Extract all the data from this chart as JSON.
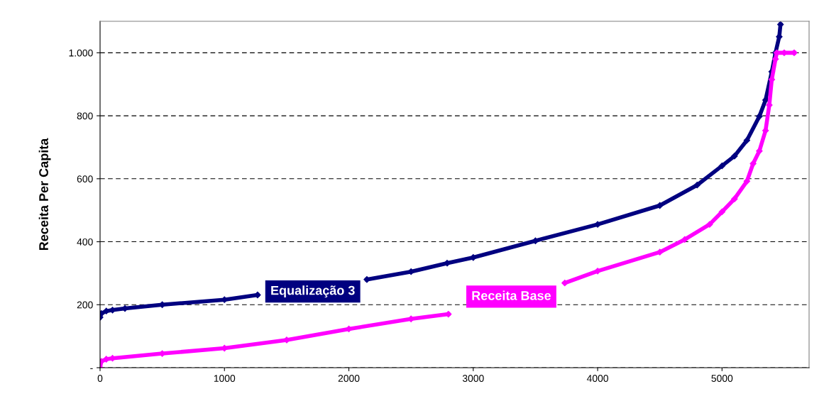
{
  "chart_data": {
    "type": "line",
    "ylabel": "Receita Per Capita",
    "xlim": [
      0,
      5700
    ],
    "xticks": [
      0,
      1000,
      2000,
      3000,
      4000,
      5000
    ],
    "ylim": [
      0,
      1100
    ],
    "yticks": [
      {
        "value": 0,
        "label": "-"
      },
      200,
      400,
      600,
      800,
      {
        "value": 1000,
        "label": "1.000"
      }
    ],
    "grid": "y",
    "legend": false,
    "marker": "diamond",
    "series": [
      {
        "name": "Equalização 3",
        "color": "#000080",
        "x": [
          0,
          10,
          50,
          100,
          200,
          500,
          1000,
          1266,
          1500,
          2145,
          2500,
          2790,
          3000,
          3500,
          4000,
          4500,
          4800,
          5000,
          5100,
          5200,
          5300,
          5350,
          5400,
          5430,
          5460,
          5470
        ],
        "values": [
          160,
          172,
          180,
          183,
          188,
          200,
          216,
          231,
          null,
          280,
          305,
          332,
          350,
          403,
          455,
          515,
          580,
          641,
          672,
          722,
          798,
          850,
          940,
          1000,
          1051,
          1090
        ]
      },
      {
        "name": "Receita Base",
        "color": "#ff00ff",
        "x": [
          0,
          10,
          50,
          100,
          500,
          1000,
          1500,
          2000,
          2500,
          2800,
          3000,
          3736,
          4000,
          4500,
          4700,
          4900,
          5000,
          5100,
          5200,
          5250,
          5300,
          5350,
          5380,
          5400,
          5430,
          5440,
          5500,
          5580
        ],
        "values": [
          0,
          20,
          27,
          30,
          45,
          62,
          88,
          123,
          155,
          170,
          null,
          269,
          307,
          367,
          407,
          455,
          495,
          536,
          592,
          648,
          688,
          753,
          834,
          915,
          980,
          1000,
          1000,
          1000
        ]
      }
    ]
  }
}
